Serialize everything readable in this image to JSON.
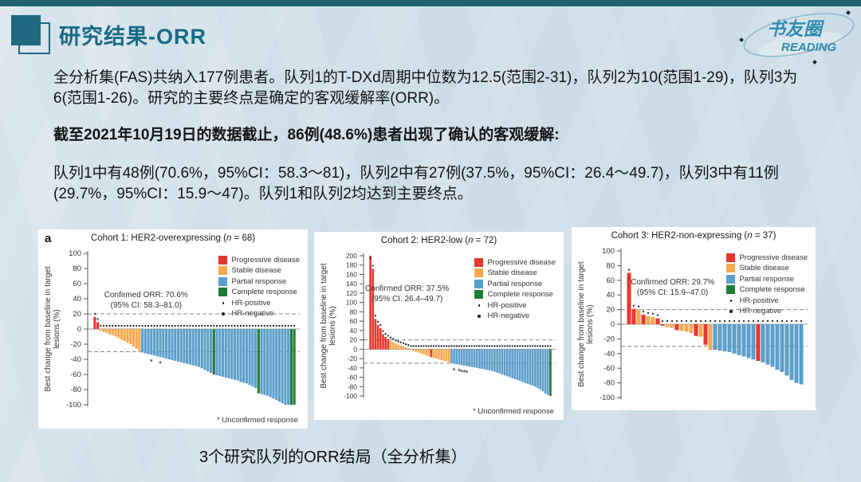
{
  "page": {
    "topbar_color": "#20606f",
    "background": "#cddde7"
  },
  "header": {
    "title": "研究结果-ORR",
    "accent_color": "#186a85"
  },
  "logo": {
    "line1": "书友圈",
    "line2": "READING",
    "color": "#2f8ab0"
  },
  "paragraphs": {
    "p1": "全分析集(FAS)共纳入177例患者。队列1的T-DXd周期中位数为12.5(范围2-31)，队列2为10(范围1-29)，队列3为6(范围1-26)。研究的主要终点是确定的客观缓解率(ORR)。",
    "p2": "截至2021年10月19日的数据截止，86例(48.6%)患者出现了确认的客观缓解:",
    "p3": "队列1中有48例(70.6%，95%CI：58.3～81)，队列2中有27例(37.5%，95%CI：26.4～49.7)，队列3中有11例(29.7%，95%CI：15.9～47)。队列1和队列2均达到主要终点。"
  },
  "caption": "3个研究队列的ORR结局（全分析集）",
  "chart_data": [
    {
      "type": "bar",
      "subtype": "waterfall",
      "panel_label": "a",
      "title": "Cohort 1: HER2-overexpressing (n = 68)",
      "annotation": {
        "line1": "Confirmed ORR: 70.6%",
        "line2": "(95% CI: 58.3–81.0)",
        "pos": [
          0.27,
          0.24
        ]
      },
      "ylabel": "Best change from baseline in target lesions (%)",
      "ylim": [
        -100,
        100
      ],
      "yticks": [
        100,
        80,
        60,
        40,
        20,
        0,
        -20,
        -40,
        -60,
        -80,
        -100
      ],
      "ref_lines": [
        20,
        -30
      ],
      "footnote": "* Unconfirmed response",
      "legend": {
        "items": [
          {
            "label": "Progressive disease",
            "key": "pd"
          },
          {
            "label": "Stable disease",
            "key": "sd"
          },
          {
            "label": "Partial response",
            "key": "pr"
          },
          {
            "label": "Complete response",
            "key": "cr"
          }
        ],
        "hr": [
          {
            "label": "HR-positive",
            "size": 2.5
          },
          {
            "label": "HR-negative",
            "size": 4.5
          }
        ]
      },
      "colors": {
        "pd": "#e8362e",
        "sd": "#f6a94e",
        "pr": "#5b9ec9",
        "cr": "#1e7d35"
      },
      "asterisk_bars": [
        19,
        22
      ],
      "bars": [
        [
          16,
          "pd"
        ],
        [
          9,
          "pd"
        ],
        [
          -2,
          "sd"
        ],
        [
          -4,
          "sd"
        ],
        [
          -5,
          "sd"
        ],
        [
          -7,
          "sd"
        ],
        [
          -8,
          "sd"
        ],
        [
          -10,
          "sd"
        ],
        [
          -12,
          "sd"
        ],
        [
          -14,
          "sd"
        ],
        [
          -16,
          "sd"
        ],
        [
          -18,
          "sd"
        ],
        [
          -20,
          "sd"
        ],
        [
          -23,
          "sd"
        ],
        [
          -26,
          "sd"
        ],
        [
          -29,
          "sd"
        ],
        [
          -31,
          "pr"
        ],
        [
          -32,
          "pr"
        ],
        [
          -33,
          "pr"
        ],
        [
          -34,
          "pr"
        ],
        [
          -35,
          "pr"
        ],
        [
          -36,
          "pr"
        ],
        [
          -37,
          "pr"
        ],
        [
          -38,
          "pr"
        ],
        [
          -39,
          "pr"
        ],
        [
          -40,
          "pr"
        ],
        [
          -41,
          "pr"
        ],
        [
          -42,
          "pr"
        ],
        [
          -43,
          "pr"
        ],
        [
          -44,
          "pr"
        ],
        [
          -45,
          "pr"
        ],
        [
          -46,
          "pr"
        ],
        [
          -47,
          "pr"
        ],
        [
          -48,
          "pr"
        ],
        [
          -49,
          "pr"
        ],
        [
          -50,
          "pr"
        ],
        [
          -52,
          "pr"
        ],
        [
          -54,
          "pr"
        ],
        [
          -56,
          "pr"
        ],
        [
          -58,
          "pr"
        ],
        [
          -60,
          "cr"
        ],
        [
          -61,
          "pr"
        ],
        [
          -62,
          "pr"
        ],
        [
          -63,
          "pr"
        ],
        [
          -64,
          "pr"
        ],
        [
          -65,
          "pr"
        ],
        [
          -66,
          "pr"
        ],
        [
          -67,
          "pr"
        ],
        [
          -68,
          "pr"
        ],
        [
          -70,
          "pr"
        ],
        [
          -71,
          "pr"
        ],
        [
          -72,
          "pr"
        ],
        [
          -74,
          "pr"
        ],
        [
          -76,
          "pr"
        ],
        [
          -78,
          "pr"
        ],
        [
          -85,
          "cr"
        ],
        [
          -86,
          "pr"
        ],
        [
          -87,
          "pr"
        ],
        [
          -88,
          "pr"
        ],
        [
          -90,
          "pr"
        ],
        [
          -92,
          "pr"
        ],
        [
          -94,
          "pr"
        ],
        [
          -96,
          "pr"
        ],
        [
          -98,
          "pr"
        ],
        [
          -100,
          "pr"
        ],
        [
          -100,
          "pr"
        ],
        [
          -100,
          "cr"
        ],
        [
          -100,
          "cr"
        ]
      ]
    },
    {
      "type": "bar",
      "subtype": "waterfall",
      "panel_label": null,
      "title": "Cohort 2: HER2-low (n = 72)",
      "annotation": {
        "line1": "Confirmed ORR: 37.5%",
        "line2": "(95% CI: 26.4–49.7)",
        "pos": [
          0.22,
          0.2
        ]
      },
      "ylabel": "Best change from baseline in target lesions (%)",
      "ylim": [
        -100,
        200
      ],
      "yticks": [
        200,
        180,
        160,
        140,
        120,
        100,
        80,
        60,
        40,
        20,
        0,
        -20,
        -40,
        -60,
        -80,
        -100
      ],
      "ref_lines": [
        20,
        -30
      ],
      "footnote": "* Unconfirmed response",
      "legend": {
        "items": [
          {
            "label": "Progressive disease",
            "key": "pd"
          },
          {
            "label": "Stable disease",
            "key": "sd"
          },
          {
            "label": "Partial response",
            "key": "pr"
          },
          {
            "label": "Complete response",
            "key": "cr"
          }
        ],
        "hr": [
          {
            "label": "HR-positive",
            "size": 2.5
          },
          {
            "label": "HR-negative",
            "size": 4.5
          }
        ]
      },
      "colors": {
        "pd": "#e8362e",
        "sd": "#f6a94e",
        "pr": "#5b9ec9",
        "cr": "#1e7d35"
      },
      "asterisk_bars": [
        33,
        35,
        36,
        37,
        38
      ],
      "bars": [
        [
          200,
          "pd"
        ],
        [
          172,
          "pd"
        ],
        [
          65,
          "pd"
        ],
        [
          52,
          "pd"
        ],
        [
          45,
          "pd"
        ],
        [
          32,
          "pd"
        ],
        [
          26,
          "pd"
        ],
        [
          22,
          "pd"
        ],
        [
          18,
          "sd"
        ],
        [
          15,
          "sd"
        ],
        [
          12,
          "sd"
        ],
        [
          10,
          "sd"
        ],
        [
          8,
          "sd"
        ],
        [
          6,
          "sd"
        ],
        [
          4,
          "sd"
        ],
        [
          2,
          "sd"
        ],
        [
          -1,
          "sd"
        ],
        [
          -3,
          "sd"
        ],
        [
          -5,
          "sd"
        ],
        [
          -7,
          "sd"
        ],
        [
          -9,
          "sd"
        ],
        [
          -11,
          "sd"
        ],
        [
          -13,
          "sd"
        ],
        [
          -15,
          "sd"
        ],
        [
          -17,
          "pd"
        ],
        [
          -19,
          "sd"
        ],
        [
          -20,
          "sd"
        ],
        [
          -22,
          "sd"
        ],
        [
          -23,
          "sd"
        ],
        [
          -25,
          "sd"
        ],
        [
          -26,
          "sd"
        ],
        [
          -28,
          "sd"
        ],
        [
          -30,
          "pr"
        ],
        [
          -31,
          "pr"
        ],
        [
          -32,
          "pr"
        ],
        [
          -33,
          "pr"
        ],
        [
          -34,
          "pr"
        ],
        [
          -35,
          "pr"
        ],
        [
          -36,
          "pr"
        ],
        [
          -37,
          "pr"
        ],
        [
          -38,
          "pr"
        ],
        [
          -39,
          "pr"
        ],
        [
          -40,
          "pr"
        ],
        [
          -41,
          "pr"
        ],
        [
          -42,
          "pr"
        ],
        [
          -43,
          "pr"
        ],
        [
          -44,
          "pr"
        ],
        [
          -45,
          "pr"
        ],
        [
          -46,
          "pr"
        ],
        [
          -48,
          "pr"
        ],
        [
          -50,
          "pr"
        ],
        [
          -52,
          "pr"
        ],
        [
          -54,
          "pr"
        ],
        [
          -56,
          "pr"
        ],
        [
          -58,
          "pr"
        ],
        [
          -60,
          "pr"
        ],
        [
          -62,
          "pr"
        ],
        [
          -64,
          "pr"
        ],
        [
          -66,
          "pr"
        ],
        [
          -68,
          "pr"
        ],
        [
          -70,
          "pr"
        ],
        [
          -72,
          "pr"
        ],
        [
          -74,
          "pr"
        ],
        [
          -76,
          "pr"
        ],
        [
          -78,
          "pr"
        ],
        [
          -80,
          "pr"
        ],
        [
          -83,
          "pr"
        ],
        [
          -86,
          "pr"
        ],
        [
          -90,
          "pr"
        ],
        [
          -95,
          "pr"
        ],
        [
          -98,
          "pr"
        ],
        [
          -100,
          "cr"
        ]
      ]
    },
    {
      "type": "bar",
      "subtype": "waterfall",
      "panel_label": null,
      "title": "Cohort 3: HER2-non-expressing (n = 37)",
      "annotation": {
        "line1": "Confirmed ORR: 29.7%",
        "line2": "(95% CI: 15.9–47.0)",
        "pos": [
          0.27,
          0.18
        ]
      },
      "ylabel": "Best change from baseline in target lesions (%)",
      "ylim": [
        -100,
        100
      ],
      "yticks": [
        100,
        80,
        60,
        40,
        20,
        0,
        -20,
        -40,
        -60,
        -80,
        -100
      ],
      "ref_lines": [
        20,
        -30
      ],
      "footnote": null,
      "legend": {
        "items": [
          {
            "label": "Progressive disease",
            "key": "pd"
          },
          {
            "label": "Stable disease",
            "key": "sd"
          },
          {
            "label": "Partial response",
            "key": "pr"
          },
          {
            "label": "Complete response",
            "key": "cr"
          }
        ],
        "hr": [
          {
            "label": "HR-positive",
            "size": 2.5
          },
          {
            "label": "HR-negative",
            "size": 4.5
          }
        ]
      },
      "colors": {
        "pd": "#e8362e",
        "sd": "#f6a94e",
        "pr": "#5b9ec9",
        "cr": "#1e7d35"
      },
      "asterisk_bars": [],
      "bars": [
        [
          70,
          "pd"
        ],
        [
          21,
          "pd"
        ],
        [
          20,
          "sd"
        ],
        [
          13,
          "pd"
        ],
        [
          11,
          "sd"
        ],
        [
          10,
          "sd"
        ],
        [
          8,
          "pd"
        ],
        [
          -2,
          "pd"
        ],
        [
          -4,
          "sd"
        ],
        [
          -5,
          "sd"
        ],
        [
          -8,
          "pd"
        ],
        [
          -9,
          "sd"
        ],
        [
          -10,
          "sd"
        ],
        [
          -12,
          "sd"
        ],
        [
          -16,
          "pd"
        ],
        [
          -17,
          "sd"
        ],
        [
          -28,
          "pd"
        ],
        [
          -35,
          "sd"
        ],
        [
          -35,
          "pr"
        ],
        [
          -36,
          "pr"
        ],
        [
          -37,
          "pr"
        ],
        [
          -38,
          "pr"
        ],
        [
          -40,
          "pr"
        ],
        [
          -42,
          "pr"
        ],
        [
          -44,
          "pr"
        ],
        [
          -46,
          "pr"
        ],
        [
          -48,
          "pr"
        ],
        [
          -50,
          "pd"
        ],
        [
          -52,
          "pr"
        ],
        [
          -55,
          "pr"
        ],
        [
          -58,
          "pr"
        ],
        [
          -62,
          "pr"
        ],
        [
          -65,
          "pr"
        ],
        [
          -70,
          "pr"
        ],
        [
          -76,
          "pr"
        ],
        [
          -80,
          "pr"
        ],
        [
          -82,
          "pr"
        ]
      ]
    }
  ]
}
